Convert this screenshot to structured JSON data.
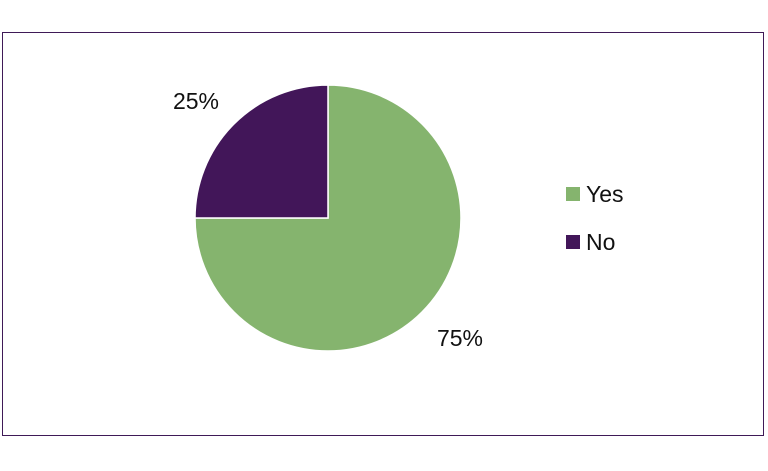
{
  "chart_data": {
    "type": "pie",
    "slices": [
      {
        "label": "Yes",
        "value": 75,
        "data_label": "75%",
        "color": "#85b46e"
      },
      {
        "label": "No",
        "value": 25,
        "data_label": "25%",
        "color": "#421659"
      }
    ],
    "start_angle_deg": 0,
    "direction": "clockwise",
    "legend_position": "right",
    "frame_color": "#3f1a57"
  }
}
